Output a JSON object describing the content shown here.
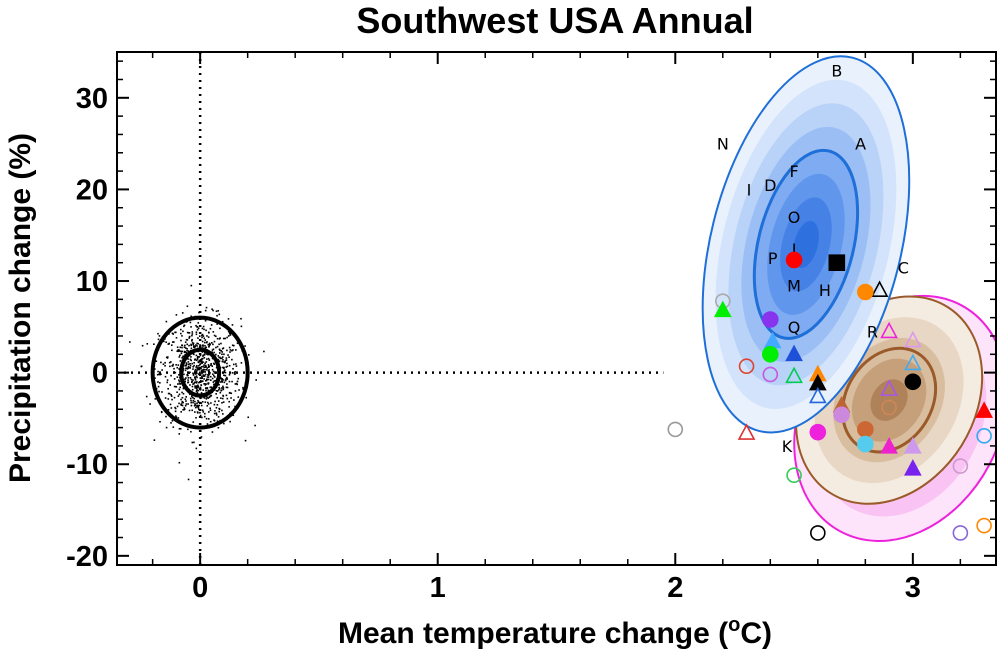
{
  "chart_data": {
    "type": "scatter",
    "title": "Southwest USA Annual",
    "xlabel": "Mean temperature change (",
    "xlabel_sup": "o",
    "xlabel_unit": "C)",
    "ylabel": "Precipitation change (%)",
    "xlim": [
      -0.35,
      3.35
    ],
    "ylim": [
      -21,
      35
    ],
    "xticks": [
      0,
      1,
      2,
      3
    ],
    "yticks": [
      -20,
      -10,
      0,
      10,
      20,
      30
    ],
    "reference_lines": {
      "x": 0,
      "y": 0
    },
    "natural_variability": {
      "center": [
        0,
        0
      ],
      "ellipses": [
        {
          "rx": 0.2,
          "ry": 6
        },
        {
          "rx": 0.08,
          "ry": 2.5
        }
      ],
      "color": "#000000",
      "n_points": 900
    },
    "ellipse_regions": [
      {
        "name": "magenta",
        "center": [
          2.95,
          -5
        ],
        "rx": 0.42,
        "ry": 14,
        "angle": 28,
        "color": "#ee22dd",
        "fills": [
          "#fde4fa",
          "#f9c4f3",
          "#f4a0ec",
          "#ef7be5",
          "#ea58de"
        ]
      },
      {
        "name": "brown",
        "center": [
          2.9,
          -3
        ],
        "rx": 0.36,
        "ry": 12,
        "angle": 32,
        "color": "#9a5a2a",
        "fills": [
          "#f4ebe1",
          "#e8d7c4",
          "#d8bd9f",
          "#c6a07b",
          "#b0825a"
        ]
      },
      {
        "name": "blue",
        "center": [
          2.55,
          14
        ],
        "rx": 0.4,
        "ry": 21,
        "angle": 14,
        "color": "#1f6fd8",
        "fills": [
          "#e9f1fd",
          "#d2e3fb",
          "#b8d2f8",
          "#9bbff5",
          "#7eabf1",
          "#6096ec",
          "#4682e6",
          "#2f70df"
        ]
      }
    ],
    "letter_labels": [
      {
        "t": "B",
        "x": 2.68,
        "y": 33
      },
      {
        "t": "N",
        "x": 2.2,
        "y": 25
      },
      {
        "t": "A",
        "x": 2.78,
        "y": 25
      },
      {
        "t": "F",
        "x": 2.5,
        "y": 22
      },
      {
        "t": "I",
        "x": 2.31,
        "y": 20
      },
      {
        "t": "D",
        "x": 2.4,
        "y": 20.5
      },
      {
        "t": "O",
        "x": 2.5,
        "y": 17
      },
      {
        "t": "I",
        "x": 2.5,
        "y": 13.5
      },
      {
        "t": "P",
        "x": 2.41,
        "y": 12.5
      },
      {
        "t": "C",
        "x": 2.96,
        "y": 11.5
      },
      {
        "t": "M",
        "x": 2.5,
        "y": 9.5
      },
      {
        "t": "H",
        "x": 2.63,
        "y": 9
      },
      {
        "t": "Q",
        "x": 2.5,
        "y": 5
      },
      {
        "t": "R",
        "x": 2.83,
        "y": 4.5
      },
      {
        "t": "K",
        "x": 2.47,
        "y": -8
      }
    ],
    "markers": [
      {
        "x": 2.5,
        "y": 12.3,
        "shape": "circle",
        "filled": true,
        "color": "#ff0000"
      },
      {
        "x": 2.68,
        "y": 12,
        "shape": "square",
        "filled": true,
        "color": "#000000"
      },
      {
        "x": 2.86,
        "y": 9,
        "shape": "triangle",
        "filled": false,
        "color": "#000000"
      },
      {
        "x": 2.8,
        "y": 8.8,
        "shape": "circle",
        "filled": true,
        "color": "#ff8800"
      },
      {
        "x": 2.2,
        "y": 7.8,
        "shape": "circle",
        "filled": false,
        "color": "#aaaaaa"
      },
      {
        "x": 2.2,
        "y": 6.8,
        "shape": "triangle",
        "filled": true,
        "color": "#00ee00"
      },
      {
        "x": 2.4,
        "y": 5.8,
        "shape": "circle",
        "filled": true,
        "color": "#8833ee"
      },
      {
        "x": 2.9,
        "y": 4.5,
        "shape": "triangle",
        "filled": false,
        "color": "#ee22dd"
      },
      {
        "x": 2.41,
        "y": 3.4,
        "shape": "triangle",
        "filled": true,
        "color": "#44aaff"
      },
      {
        "x": 3.0,
        "y": 3.5,
        "shape": "triangle",
        "filled": false,
        "color": "#dd99ee"
      },
      {
        "x": 2.5,
        "y": 2,
        "shape": "triangle",
        "filled": true,
        "color": "#1f50d8"
      },
      {
        "x": 2.4,
        "y": 2,
        "shape": "circle",
        "filled": true,
        "color": "#00ee00"
      },
      {
        "x": 3.0,
        "y": 1,
        "shape": "triangle",
        "filled": false,
        "color": "#44aaee"
      },
      {
        "x": 2.3,
        "y": 0.7,
        "shape": "circle",
        "filled": false,
        "color": "#dd4433"
      },
      {
        "x": 2.4,
        "y": -0.2,
        "shape": "circle",
        "filled": false,
        "color": "#cc55dd"
      },
      {
        "x": 2.5,
        "y": -0.4,
        "shape": "triangle",
        "filled": false,
        "color": "#00cc55"
      },
      {
        "x": 2.6,
        "y": -0.2,
        "shape": "triangle",
        "filled": true,
        "color": "#ff8800"
      },
      {
        "x": 2.6,
        "y": -1.2,
        "shape": "triangle",
        "filled": true,
        "color": "#000000"
      },
      {
        "x": 2.9,
        "y": -1.8,
        "shape": "triangle",
        "filled": false,
        "color": "#aa55ee"
      },
      {
        "x": 3.0,
        "y": -1,
        "shape": "circle",
        "filled": true,
        "color": "#000000"
      },
      {
        "x": 2.6,
        "y": -2.6,
        "shape": "triangle",
        "filled": false,
        "color": "#2266dd"
      },
      {
        "x": 2.7,
        "y": -3.6,
        "shape": "triangle",
        "filled": true,
        "color": "#bb6633"
      },
      {
        "x": 2.7,
        "y": -4.6,
        "shape": "circle",
        "filled": true,
        "color": "#cc88dd"
      },
      {
        "x": 2.9,
        "y": -3.8,
        "shape": "circle",
        "filled": false,
        "color": "#cc8855"
      },
      {
        "x": 3.3,
        "y": -4.2,
        "shape": "triangle",
        "filled": true,
        "color": "#ff0000"
      },
      {
        "x": 2.8,
        "y": -6.2,
        "shape": "circle",
        "filled": true,
        "color": "#cc6633"
      },
      {
        "x": 2.0,
        "y": -6.2,
        "shape": "circle",
        "filled": false,
        "color": "#999999"
      },
      {
        "x": 2.6,
        "y": -6.5,
        "shape": "circle",
        "filled": true,
        "color": "#ee22dd"
      },
      {
        "x": 2.3,
        "y": -6.6,
        "shape": "triangle",
        "filled": false,
        "color": "#dd3333"
      },
      {
        "x": 3.3,
        "y": -6.9,
        "shape": "circle",
        "filled": false,
        "color": "#33aaee"
      },
      {
        "x": 2.8,
        "y": -7.8,
        "shape": "circle",
        "filled": true,
        "color": "#55ccee"
      },
      {
        "x": 2.9,
        "y": -8.1,
        "shape": "triangle",
        "filled": true,
        "color": "#ee22cc"
      },
      {
        "x": 3.0,
        "y": -8.1,
        "shape": "triangle",
        "filled": true,
        "color": "#cc99ee"
      },
      {
        "x": 3.2,
        "y": -10.2,
        "shape": "circle",
        "filled": false,
        "color": "#cc99cc"
      },
      {
        "x": 3.0,
        "y": -10.5,
        "shape": "triangle",
        "filled": true,
        "color": "#7722ee"
      },
      {
        "x": 2.5,
        "y": -11.2,
        "shape": "circle",
        "filled": false,
        "color": "#33cc55"
      },
      {
        "x": 2.6,
        "y": -17.5,
        "shape": "circle",
        "filled": false,
        "color": "#000000"
      },
      {
        "x": 3.2,
        "y": -17.5,
        "shape": "circle",
        "filled": false,
        "color": "#8866dd"
      },
      {
        "x": 3.3,
        "y": -16.7,
        "shape": "circle",
        "filled": false,
        "color": "#ff8800"
      }
    ]
  }
}
